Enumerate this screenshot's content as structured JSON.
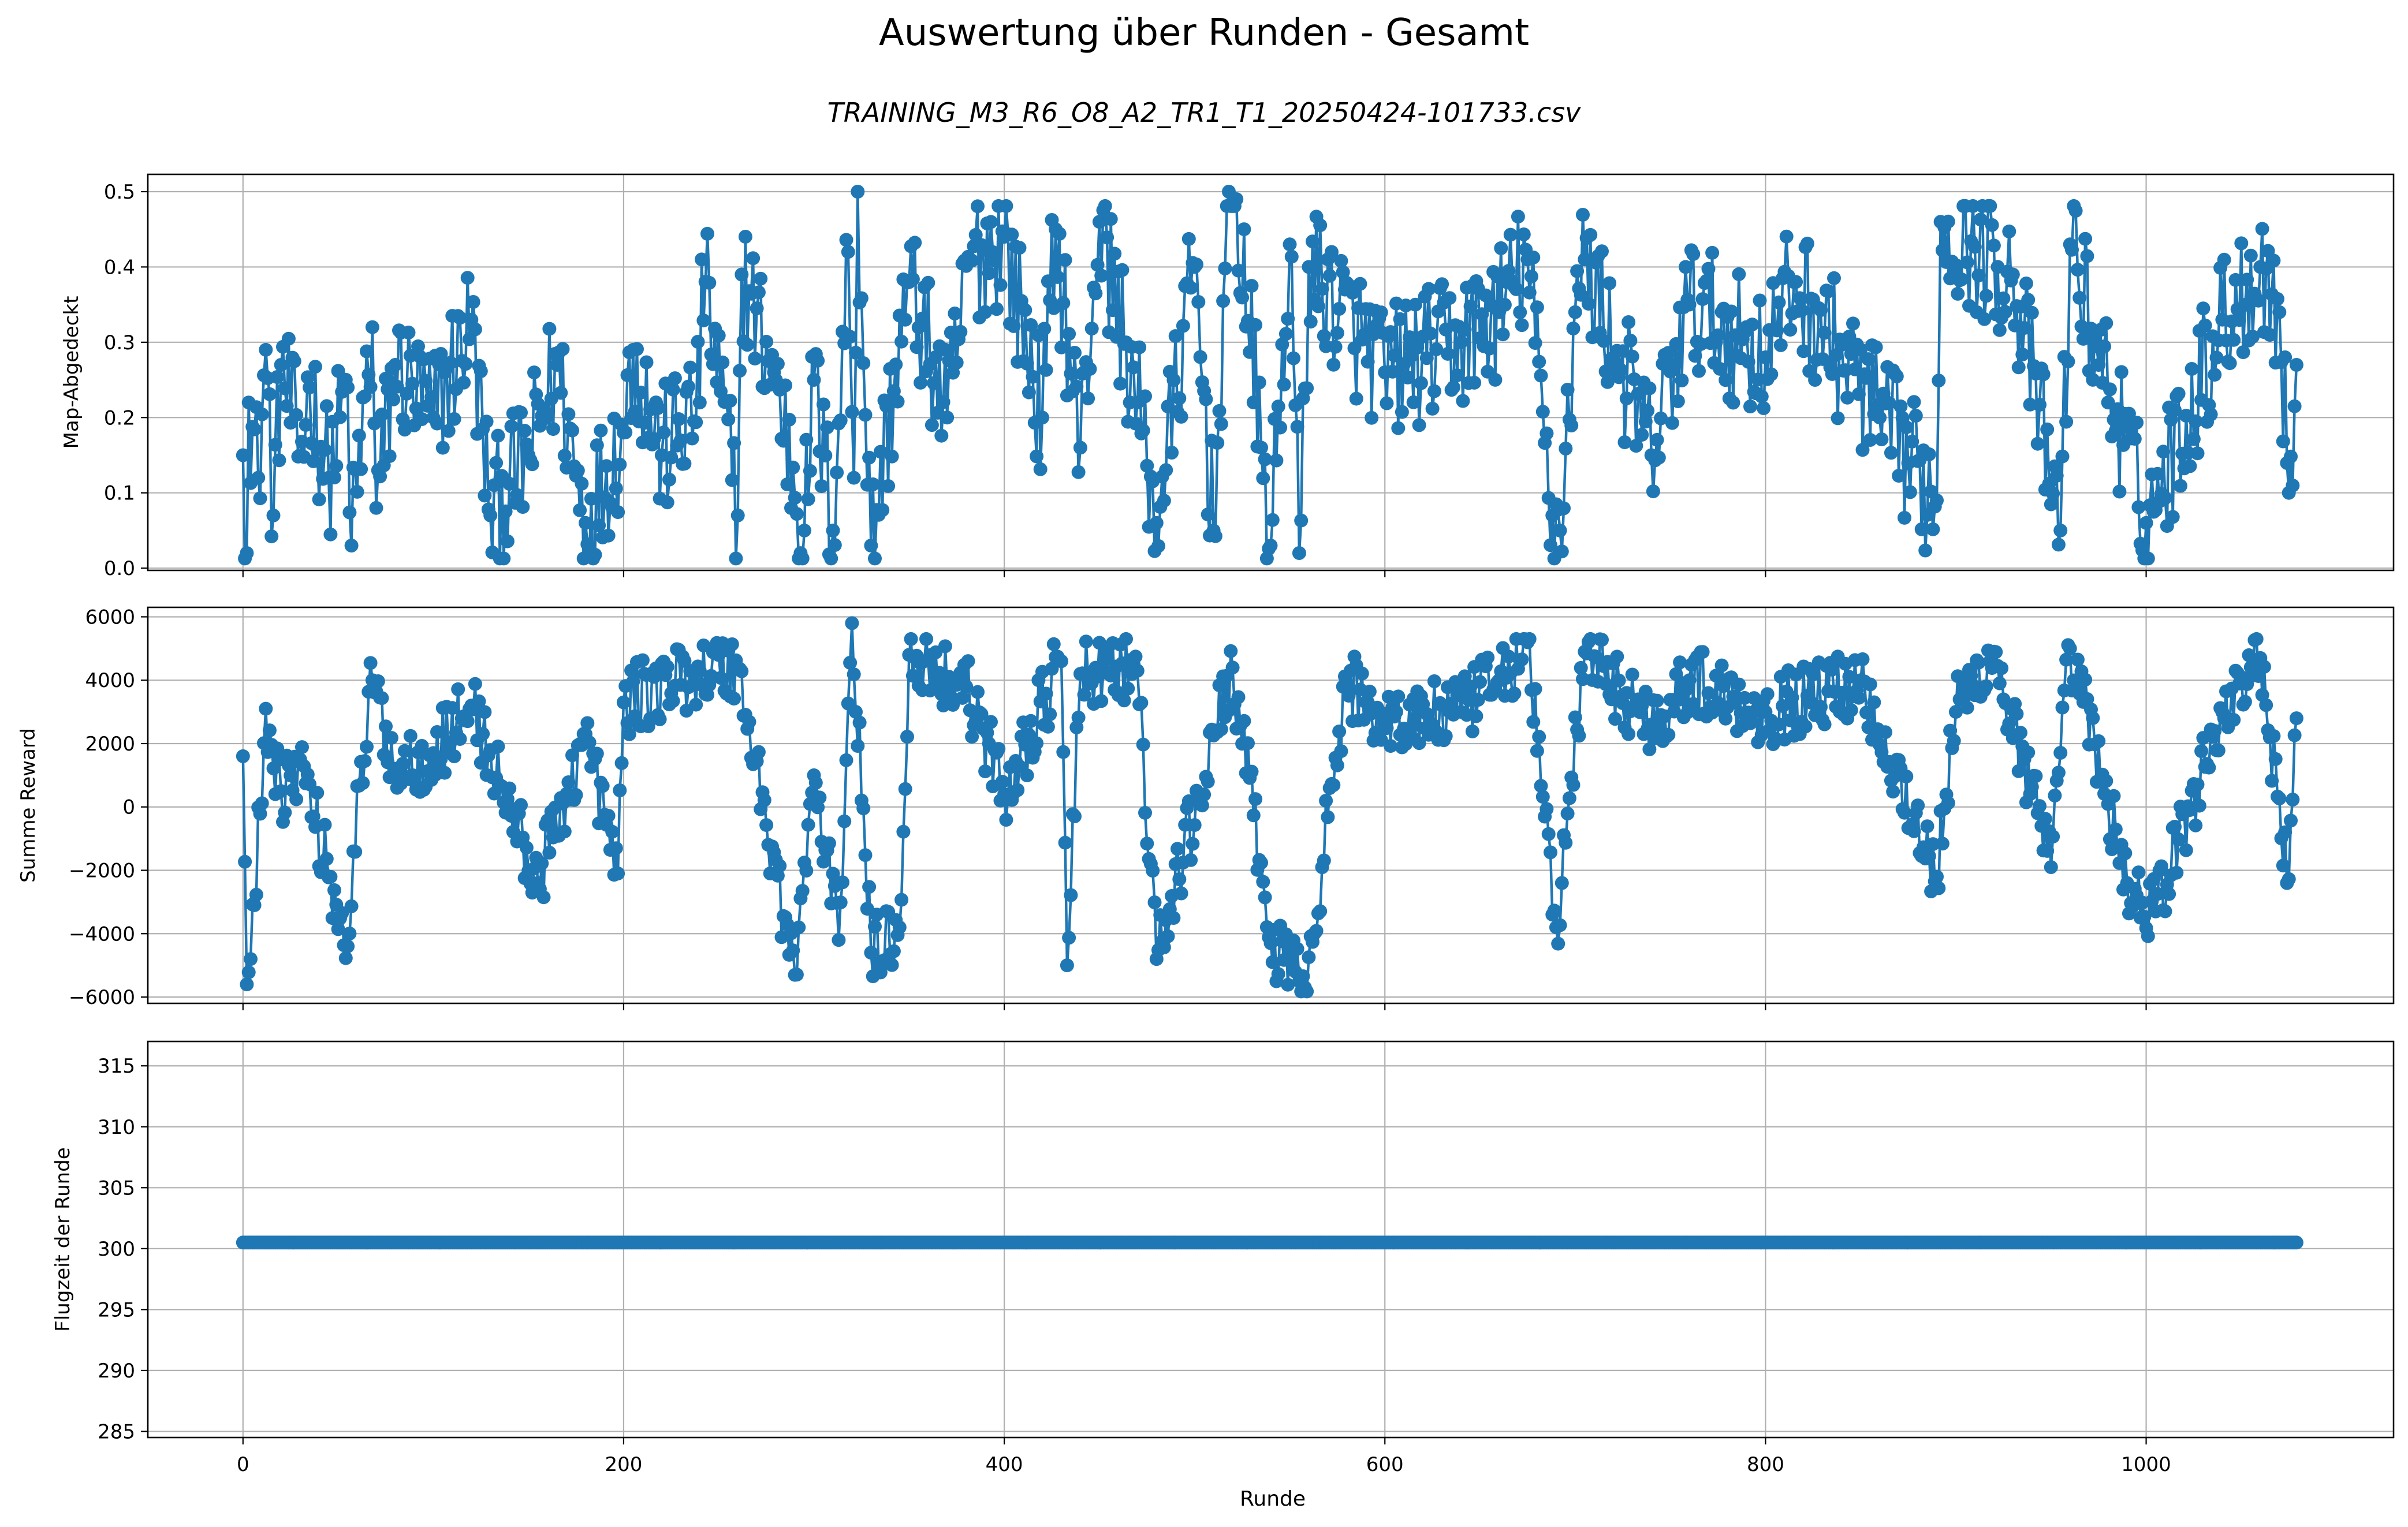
{
  "figure": {
    "title": "Auswertung über Runden - Gesamt",
    "subtitle": "TRAINING_M3_R6_O8_A2_TR1_T1_20250424-101733.csv",
    "xlabel": "Runde"
  },
  "colors": {
    "series": "#1f77b4",
    "grid": "#b0b0b0",
    "axes": "#000000"
  },
  "chart_data": [
    {
      "type": "line",
      "markers": true,
      "ylabel": "Map-Abgedeckt",
      "xlim": [
        -50,
        1130
      ],
      "ylim": [
        -0.003,
        0.523
      ],
      "xticks": [
        0,
        200,
        400,
        600,
        800,
        1000
      ],
      "yticks": [
        0.0,
        0.1,
        0.2,
        0.3,
        0.4,
        0.5
      ],
      "ytick_labels": [
        "0.0",
        "0.1",
        "0.2",
        "0.3",
        "0.4",
        "0.5"
      ],
      "grid": true,
      "x_start": 0,
      "x_end": 1079,
      "keypoints": [
        [
          0,
          0.15
        ],
        [
          2,
          0.02
        ],
        [
          3,
          0.22
        ],
        [
          8,
          0.12
        ],
        [
          12,
          0.29
        ],
        [
          16,
          0.07
        ],
        [
          20,
          0.27
        ],
        [
          30,
          0.15
        ],
        [
          35,
          0.24
        ],
        [
          45,
          0.12
        ],
        [
          55,
          0.24
        ],
        [
          57,
          0.03
        ],
        [
          68,
          0.32
        ],
        [
          70,
          0.08
        ],
        [
          80,
          0.27
        ],
        [
          100,
          0.2
        ],
        [
          120,
          0.33
        ],
        [
          130,
          0.07
        ],
        [
          150,
          0.15
        ],
        [
          165,
          0.27
        ],
        [
          180,
          0.06
        ],
        [
          200,
          0.18
        ],
        [
          205,
          0.29
        ],
        [
          220,
          0.15
        ],
        [
          240,
          0.22
        ],
        [
          241,
          0.41
        ],
        [
          260,
          0.07
        ],
        [
          262,
          0.39
        ],
        [
          280,
          0.25
        ],
        [
          295,
          0.05
        ],
        [
          300,
          0.25
        ],
        [
          310,
          0.05
        ],
        [
          318,
          0.42
        ],
        [
          321,
          0.12
        ],
        [
          323,
          0.5
        ],
        [
          330,
          0.03
        ],
        [
          350,
          0.38
        ],
        [
          370,
          0.2
        ],
        [
          382,
          0.41
        ],
        [
          400,
          0.44
        ],
        [
          420,
          0.2
        ],
        [
          427,
          0.45
        ],
        [
          440,
          0.16
        ],
        [
          450,
          0.46
        ],
        [
          470,
          0.22
        ],
        [
          480,
          0.06
        ],
        [
          500,
          0.4
        ],
        [
          510,
          0.05
        ],
        [
          518,
          0.5
        ],
        [
          522,
          0.49
        ],
        [
          535,
          0.16
        ],
        [
          540,
          0.03
        ],
        [
          550,
          0.43
        ],
        [
          555,
          0.02
        ],
        [
          560,
          0.4
        ],
        [
          600,
          0.26
        ],
        [
          640,
          0.3
        ],
        [
          660,
          0.34
        ],
        [
          675,
          0.41
        ],
        [
          688,
          0.07
        ],
        [
          692,
          0.05
        ],
        [
          700,
          0.34
        ],
        [
          705,
          0.41
        ],
        [
          740,
          0.15
        ],
        [
          760,
          0.35
        ],
        [
          800,
          0.28
        ],
        [
          815,
          0.38
        ],
        [
          860,
          0.2
        ],
        [
          890,
          0.09
        ],
        [
          892,
          0.46
        ],
        [
          930,
          0.39
        ],
        [
          955,
          0.05
        ],
        [
          960,
          0.43
        ],
        [
          1000,
          0.06
        ],
        [
          1040,
          0.33
        ],
        [
          1060,
          0.4
        ],
        [
          1070,
          0.34
        ],
        [
          1075,
          0.1
        ],
        [
          1079,
          0.27
        ]
      ],
      "noise_amplitude": 0.09
    },
    {
      "type": "line",
      "markers": true,
      "ylabel": "Summe Reward",
      "xlim": [
        -50,
        1130
      ],
      "ylim": [
        -6200,
        6300
      ],
      "xticks": [
        0,
        200,
        400,
        600,
        800,
        1000
      ],
      "yticks": [
        -6000,
        -4000,
        -2000,
        0,
        2000,
        4000,
        6000
      ],
      "ytick_labels": [
        "−6000",
        "−4000",
        "−2000",
        "0",
        "2000",
        "4000",
        "6000"
      ],
      "grid": true,
      "x_start": 0,
      "x_end": 1079,
      "keypoints": [
        [
          0,
          1600
        ],
        [
          2,
          -5600
        ],
        [
          4,
          -4800
        ],
        [
          6,
          -3100
        ],
        [
          12,
          3100
        ],
        [
          20,
          500
        ],
        [
          30,
          1500
        ],
        [
          55,
          -4400
        ],
        [
          58,
          -1400
        ],
        [
          68,
          4000
        ],
        [
          80,
          1200
        ],
        [
          100,
          1700
        ],
        [
          120,
          3200
        ],
        [
          155,
          -2400
        ],
        [
          180,
          2300
        ],
        [
          197,
          -2100
        ],
        [
          200,
          3300
        ],
        [
          240,
          4300
        ],
        [
          260,
          4400
        ],
        [
          290,
          -5300
        ],
        [
          300,
          1000
        ],
        [
          313,
          -4200
        ],
        [
          320,
          5800
        ],
        [
          330,
          -4600
        ],
        [
          345,
          -3800
        ],
        [
          350,
          4800
        ],
        [
          380,
          3800
        ],
        [
          400,
          400
        ],
        [
          430,
          4600
        ],
        [
          433,
          -5000
        ],
        [
          440,
          4200
        ],
        [
          470,
          4300
        ],
        [
          480,
          -4800
        ],
        [
          520,
          4400
        ],
        [
          540,
          -4300
        ],
        [
          555,
          -5500
        ],
        [
          558,
          -5700
        ],
        [
          580,
          3900
        ],
        [
          600,
          2700
        ],
        [
          640,
          3000
        ],
        [
          660,
          4000
        ],
        [
          675,
          5200
        ],
        [
          690,
          -3800
        ],
        [
          693,
          -2400
        ],
        [
          705,
          4900
        ],
        [
          740,
          2600
        ],
        [
          760,
          4000
        ],
        [
          800,
          3000
        ],
        [
          850,
          4000
        ],
        [
          890,
          -2200
        ],
        [
          900,
          3000
        ],
        [
          920,
          4900
        ],
        [
          950,
          -1900
        ],
        [
          960,
          5000
        ],
        [
          990,
          -2400
        ],
        [
          1005,
          -3300
        ],
        [
          1040,
          3000
        ],
        [
          1060,
          4700
        ],
        [
          1074,
          -2400
        ],
        [
          1079,
          2800
        ]
      ],
      "noise_amplitude": 1100
    },
    {
      "type": "line",
      "markers": true,
      "ylabel": "Flugzeit der Runde",
      "xlim": [
        -50,
        1130
      ],
      "ylim": [
        284.5,
        317
      ],
      "xticks": [
        0,
        200,
        400,
        600,
        800,
        1000
      ],
      "xtick_labels": [
        "0",
        "200",
        "400",
        "600",
        "800",
        "1000"
      ],
      "yticks": [
        285,
        290,
        295,
        300,
        305,
        310,
        315
      ],
      "ytick_labels": [
        "285",
        "290",
        "295",
        "300",
        "305",
        "310",
        "315"
      ],
      "grid": true,
      "x_start": 0,
      "x_end": 1079,
      "constant_value": 300.5
    }
  ]
}
